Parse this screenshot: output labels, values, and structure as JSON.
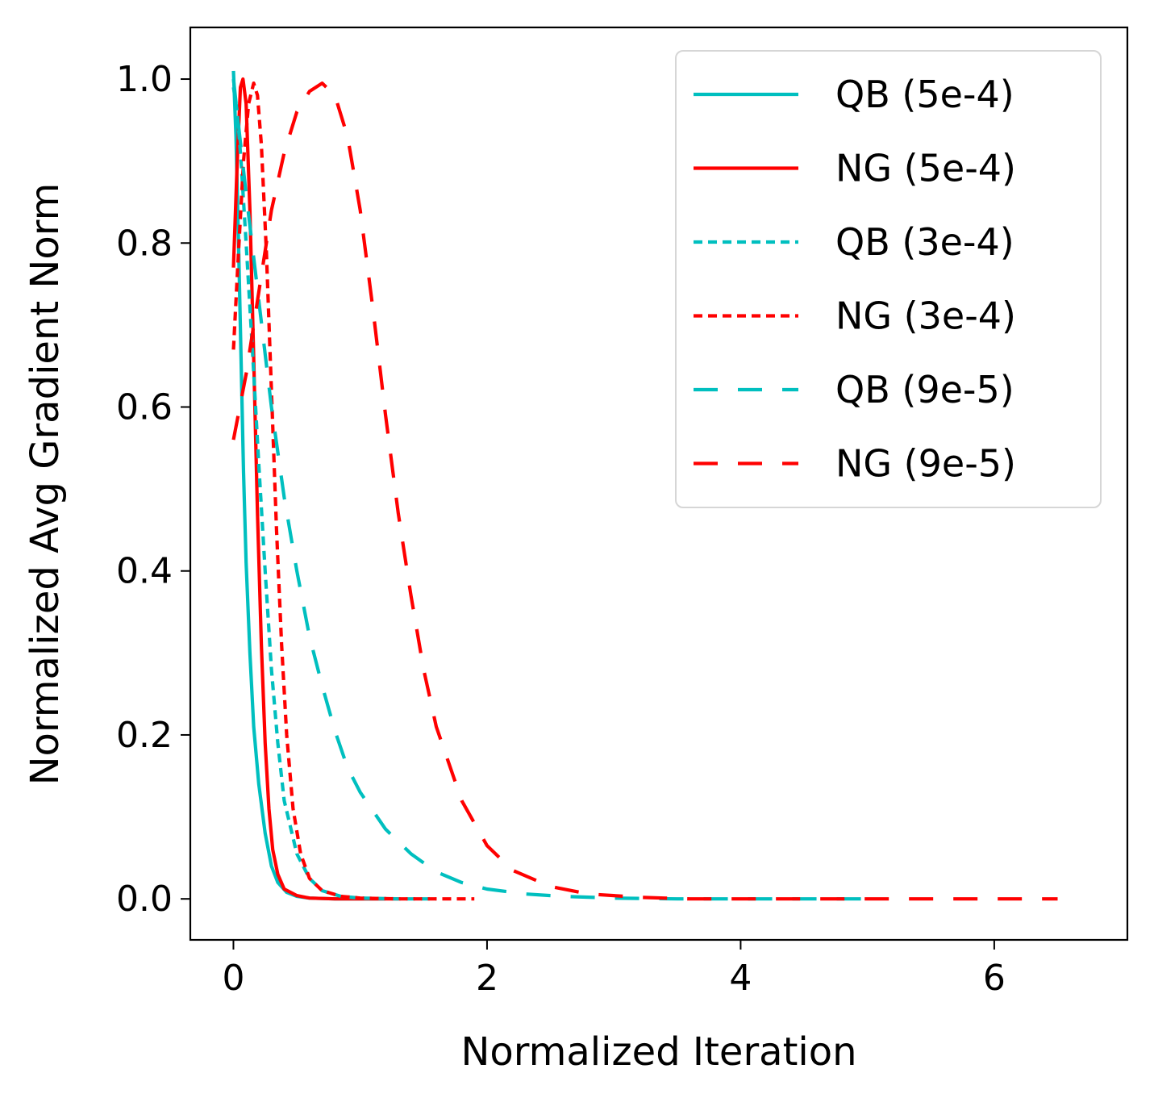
{
  "chart_data": {
    "type": "line",
    "title": "",
    "xlabel": "Normalized Iteration",
    "ylabel": "Normalized Avg Gradient Norm",
    "xlim": [
      -0.34,
      7.05
    ],
    "ylim": [
      -0.05,
      1.063
    ],
    "xticks": [
      0,
      2,
      4,
      6
    ],
    "xtick_labels": [
      "0",
      "2",
      "4",
      "6"
    ],
    "yticks": [
      0.0,
      0.2,
      0.4,
      0.6,
      0.8,
      1.0
    ],
    "ytick_labels": [
      "0.0",
      "0.2",
      "0.4",
      "0.6",
      "0.8",
      "1.0"
    ],
    "grid": false,
    "legend_position": "top-right",
    "series": [
      {
        "name": "QB (5e-4)",
        "color": "#00bfbf",
        "dash": "solid",
        "points": [
          [
            0.0,
            1.01
          ],
          [
            0.02,
            0.93
          ],
          [
            0.04,
            0.8
          ],
          [
            0.06,
            0.66
          ],
          [
            0.08,
            0.52
          ],
          [
            0.1,
            0.41
          ],
          [
            0.13,
            0.3
          ],
          [
            0.16,
            0.21
          ],
          [
            0.2,
            0.14
          ],
          [
            0.25,
            0.08
          ],
          [
            0.3,
            0.04
          ],
          [
            0.35,
            0.02
          ],
          [
            0.42,
            0.008
          ],
          [
            0.5,
            0.003
          ],
          [
            0.6,
            0.001
          ],
          [
            0.8,
            0.0
          ],
          [
            1.0,
            0.0
          ],
          [
            1.2,
            0.0
          ]
        ]
      },
      {
        "name": "NG (5e-4)",
        "color": "#ff0000",
        "dash": "solid",
        "points": [
          [
            0.0,
            0.77
          ],
          [
            0.03,
            0.9
          ],
          [
            0.055,
            0.99
          ],
          [
            0.075,
            1.0
          ],
          [
            0.1,
            0.97
          ],
          [
            0.13,
            0.84
          ],
          [
            0.16,
            0.66
          ],
          [
            0.19,
            0.47
          ],
          [
            0.22,
            0.31
          ],
          [
            0.25,
            0.19
          ],
          [
            0.28,
            0.11
          ],
          [
            0.31,
            0.06
          ],
          [
            0.35,
            0.03
          ],
          [
            0.4,
            0.012
          ],
          [
            0.5,
            0.004
          ],
          [
            0.6,
            0.001
          ],
          [
            0.8,
            0.0
          ],
          [
            1.0,
            0.0
          ],
          [
            1.3,
            0.0
          ]
        ]
      },
      {
        "name": "QB (3e-4)",
        "color": "#00bfbf",
        "dash": "dotted",
        "points": [
          [
            0.0,
            0.99
          ],
          [
            0.03,
            0.96
          ],
          [
            0.06,
            0.9
          ],
          [
            0.1,
            0.8
          ],
          [
            0.15,
            0.67
          ],
          [
            0.2,
            0.53
          ],
          [
            0.25,
            0.4
          ],
          [
            0.3,
            0.28
          ],
          [
            0.35,
            0.19
          ],
          [
            0.4,
            0.12
          ],
          [
            0.5,
            0.055
          ],
          [
            0.6,
            0.025
          ],
          [
            0.7,
            0.01
          ],
          [
            0.85,
            0.003
          ],
          [
            1.0,
            0.001
          ],
          [
            1.3,
            0.0
          ],
          [
            1.6,
            0.0
          ]
        ]
      },
      {
        "name": "NG (3e-4)",
        "color": "#ff0000",
        "dash": "dotted",
        "points": [
          [
            0.0,
            0.67
          ],
          [
            0.04,
            0.79
          ],
          [
            0.08,
            0.9
          ],
          [
            0.12,
            0.97
          ],
          [
            0.16,
            0.995
          ],
          [
            0.19,
            0.98
          ],
          [
            0.22,
            0.92
          ],
          [
            0.26,
            0.79
          ],
          [
            0.3,
            0.62
          ],
          [
            0.34,
            0.45
          ],
          [
            0.38,
            0.31
          ],
          [
            0.42,
            0.2
          ],
          [
            0.47,
            0.11
          ],
          [
            0.53,
            0.055
          ],
          [
            0.6,
            0.025
          ],
          [
            0.7,
            0.01
          ],
          [
            0.85,
            0.003
          ],
          [
            1.0,
            0.001
          ],
          [
            1.3,
            0.0
          ],
          [
            1.9,
            0.0
          ]
        ]
      },
      {
        "name": "QB (9e-5)",
        "color": "#00bfbf",
        "dash": "dashed",
        "points": [
          [
            0.0,
            1.0
          ],
          [
            0.05,
            0.93
          ],
          [
            0.1,
            0.86
          ],
          [
            0.2,
            0.73
          ],
          [
            0.3,
            0.6
          ],
          [
            0.4,
            0.49
          ],
          [
            0.5,
            0.4
          ],
          [
            0.6,
            0.32
          ],
          [
            0.7,
            0.26
          ],
          [
            0.8,
            0.205
          ],
          [
            0.9,
            0.16
          ],
          [
            1.0,
            0.13
          ],
          [
            1.2,
            0.085
          ],
          [
            1.4,
            0.055
          ],
          [
            1.6,
            0.033
          ],
          [
            1.8,
            0.02
          ],
          [
            2.0,
            0.012
          ],
          [
            2.3,
            0.006
          ],
          [
            2.6,
            0.003
          ],
          [
            3.0,
            0.001
          ],
          [
            3.5,
            0.0
          ],
          [
            4.0,
            0.0
          ],
          [
            5.0,
            0.0
          ]
        ]
      },
      {
        "name": "NG (9e-5)",
        "color": "#ff0000",
        "dash": "dashed",
        "points": [
          [
            0.0,
            0.56
          ],
          [
            0.1,
            0.64
          ],
          [
            0.2,
            0.74
          ],
          [
            0.3,
            0.84
          ],
          [
            0.4,
            0.91
          ],
          [
            0.5,
            0.96
          ],
          [
            0.6,
            0.985
          ],
          [
            0.7,
            0.995
          ],
          [
            0.8,
            0.98
          ],
          [
            0.9,
            0.93
          ],
          [
            1.0,
            0.84
          ],
          [
            1.1,
            0.72
          ],
          [
            1.2,
            0.59
          ],
          [
            1.3,
            0.47
          ],
          [
            1.4,
            0.37
          ],
          [
            1.5,
            0.28
          ],
          [
            1.6,
            0.21
          ],
          [
            1.8,
            0.12
          ],
          [
            2.0,
            0.065
          ],
          [
            2.2,
            0.035
          ],
          [
            2.5,
            0.015
          ],
          [
            2.8,
            0.006
          ],
          [
            3.2,
            0.002
          ],
          [
            3.6,
            0.0
          ],
          [
            4.5,
            0.0
          ],
          [
            5.5,
            0.0
          ],
          [
            6.5,
            0.0
          ]
        ]
      }
    ]
  }
}
